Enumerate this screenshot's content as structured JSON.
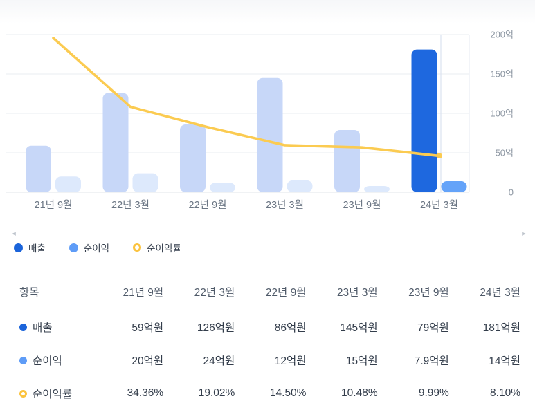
{
  "chart_data": {
    "type": "bar",
    "categories": [
      "21년 9월",
      "22년 3월",
      "22년 9월",
      "23년 3월",
      "23년 9월",
      "24년 3월"
    ],
    "series": [
      {
        "name": "매출",
        "chart": "bar",
        "unit": "억원",
        "values": [
          59,
          126,
          86,
          145,
          79,
          181
        ]
      },
      {
        "name": "순이익",
        "chart": "bar",
        "unit": "억원",
        "values": [
          20,
          24,
          12,
          15,
          7.9,
          14
        ]
      },
      {
        "name": "순이익률",
        "chart": "line",
        "unit": "%",
        "values": [
          34.36,
          19.02,
          14.5,
          10.48,
          9.99,
          8.1
        ]
      }
    ],
    "ylim": [
      0,
      200
    ],
    "y_ticks": [
      "200억",
      "150억",
      "100억",
      "50억",
      "0"
    ],
    "y_axis_side": "right",
    "grid": true,
    "highlight_last_category": true,
    "legend_position": "bottom-left"
  },
  "carousel": {
    "left_arrow": "◂",
    "right_arrow": "▸"
  },
  "legend": {
    "items": [
      {
        "label": "매출",
        "marker": "dot",
        "color": "#1b64da"
      },
      {
        "label": "순이익",
        "marker": "dot",
        "color": "#5e9cf7"
      },
      {
        "label": "순이익률",
        "marker": "ring",
        "color": "#fbc33f"
      }
    ]
  },
  "table": {
    "header": [
      "항목",
      "21년 9월",
      "22년 3월",
      "22년 9월",
      "23년 3월",
      "23년 9월",
      "24년 3월"
    ],
    "rows": [
      {
        "label": "매출",
        "marker": "dot",
        "color": "#1b64da",
        "values": [
          "59억원",
          "126억원",
          "86억원",
          "145억원",
          "79억원",
          "181억원"
        ]
      },
      {
        "label": "순이익",
        "marker": "dot",
        "color": "#5e9cf7",
        "values": [
          "20억원",
          "24억원",
          "12억원",
          "15억원",
          "7.9억원",
          "14억원"
        ]
      },
      {
        "label": "순이익률",
        "marker": "ring",
        "color": "#fbc33f",
        "values": [
          "34.36%",
          "19.02%",
          "14.50%",
          "10.48%",
          "9.99%",
          "8.10%"
        ]
      }
    ]
  },
  "colors": {
    "revenue_current": "#1e68df",
    "revenue_past": "#c7d7f8",
    "profit_current": "#64a3f9",
    "profit_past": "#dde9fc",
    "margin_line": "#fbcb51",
    "grid": "#edf0f3",
    "baseline": "#e6eaee",
    "selected_line": "#dde5f1",
    "plot_border": "#eceff3",
    "y_axis_text": "#8b95a1",
    "x_axis_text": "#6b7684"
  }
}
